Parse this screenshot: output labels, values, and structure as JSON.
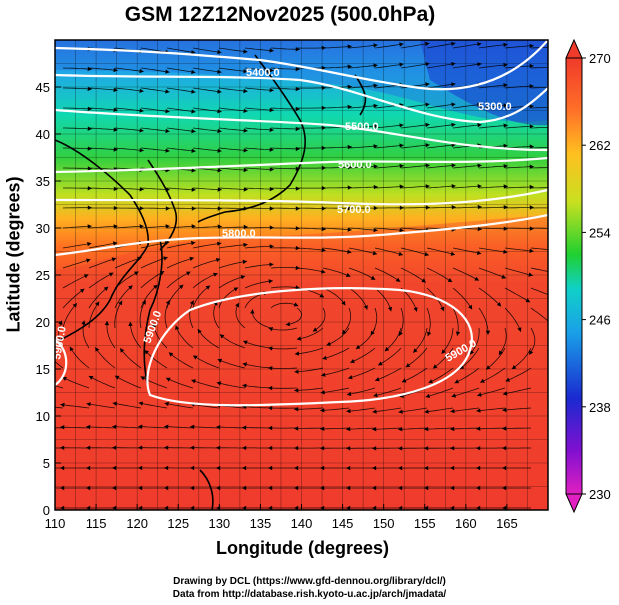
{
  "title": "GSM 12Z12Nov2025 (500.0hPa)",
  "xlabel": "Longitude (degrees)",
  "ylabel": "Latitude  (degrees)",
  "credit_line1": "Drawing by DCL (https://www.gfd-dennou.org/library/dcl/)",
  "credit_line2": "Data from http://database.rish.kyoto-u.ac.jp/arch/jmadata/",
  "x_ticks": [
    "110",
    "115",
    "120",
    "125",
    "130",
    "135",
    "140",
    "145",
    "150",
    "155",
    "160",
    "165"
  ],
  "y_ticks": [
    "0",
    "5",
    "10",
    "15",
    "20",
    "25",
    "30",
    "35",
    "40",
    "45"
  ],
  "colorbar_ticks": [
    "230",
    "238",
    "246",
    "254",
    "262",
    "270"
  ],
  "contour_labels": [
    "5400.0",
    "5300.0",
    "5500.0",
    "5600.0",
    "5700.0",
    "5800.0",
    "5900.0",
    "5900.0",
    "5900.0"
  ],
  "colors": {
    "cold": "#e020c0",
    "cool": "#1a2ad0",
    "mid": "#22d020",
    "warm": "#ffe020",
    "hot": "#f03a2a"
  }
}
